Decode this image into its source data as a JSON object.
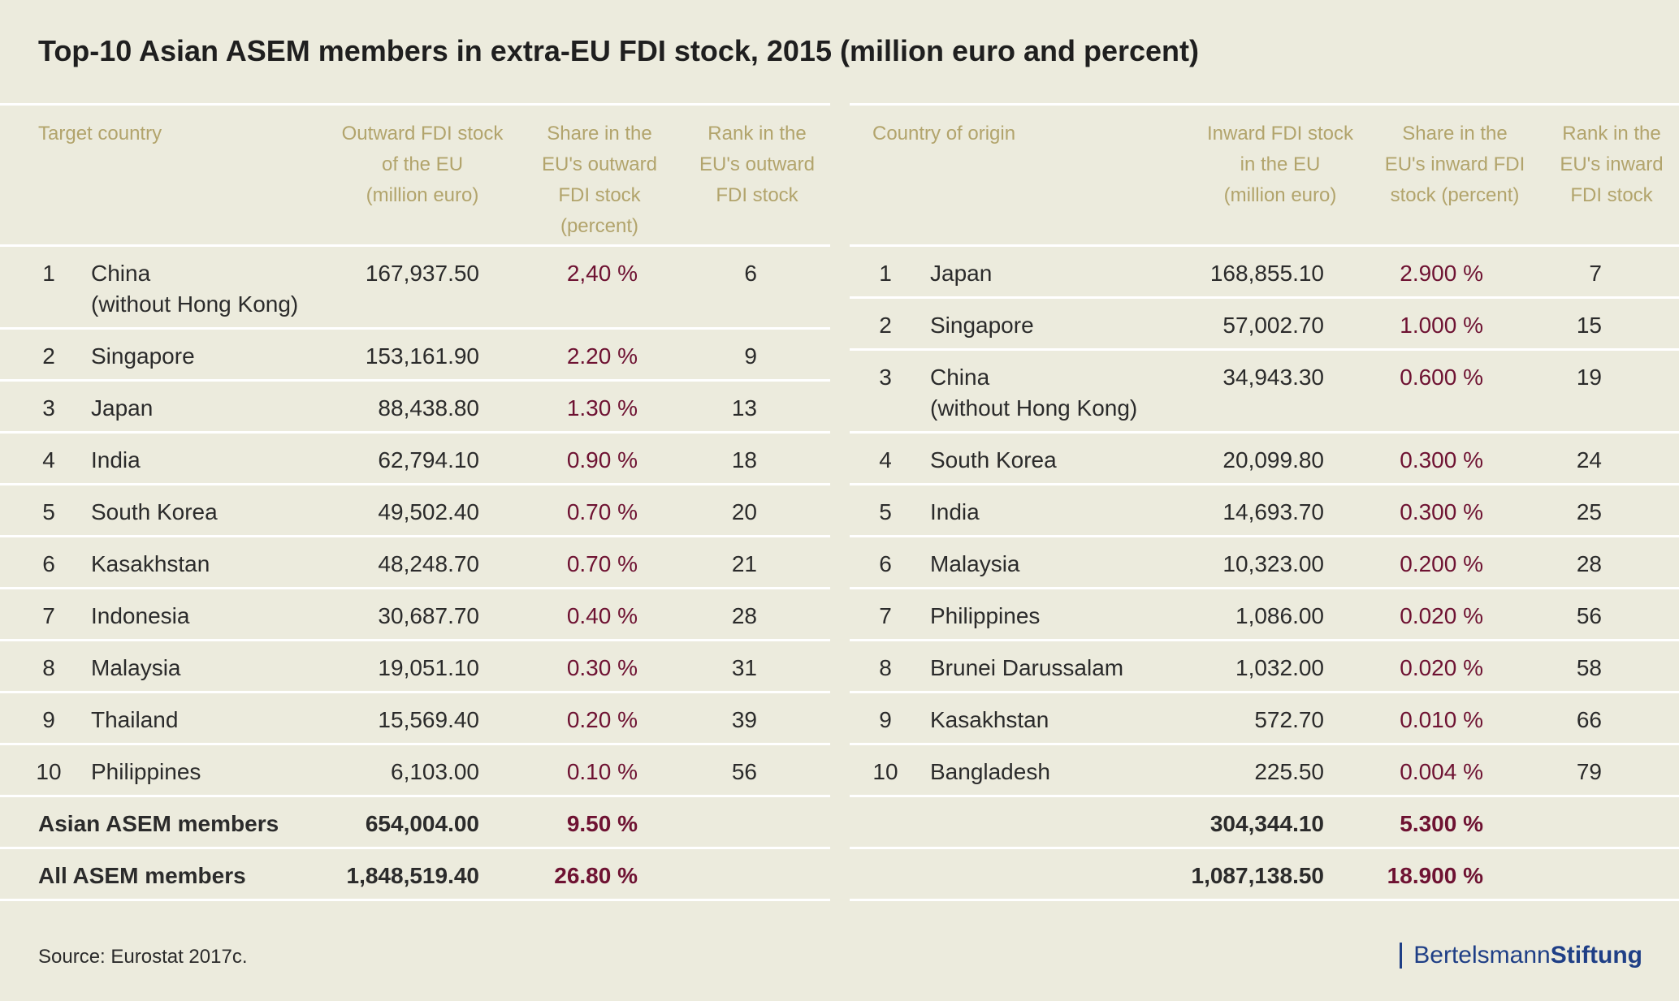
{
  "title": "Top-10 Asian ASEM members in extra-EU FDI stock, 2015 (million euro and percent)",
  "source": "Source: Eurostat 2017c.",
  "brand": {
    "part1": "Bertelsmann",
    "part2": "Stiftung"
  },
  "chart_data": {
    "type": "table",
    "outward": {
      "headers": {
        "country": "Target country",
        "value": "Outward FDI stock\nof the EU\n(million euro)",
        "share": "Share in the\nEU's outward\nFDI stock\n(percent)",
        "rank": "Rank in the\nEU's outward\nFDI stock"
      },
      "rows": [
        {
          "n": "1",
          "country": "China\n(without Hong Kong)",
          "value": "167,937.50",
          "share": "2,40 %",
          "rank": "6"
        },
        {
          "n": "2",
          "country": "Singapore",
          "value": "153,161.90",
          "share": "2.20 %",
          "rank": "9"
        },
        {
          "n": "3",
          "country": "Japan",
          "value": "88,438.80",
          "share": "1.30 %",
          "rank": "13"
        },
        {
          "n": "4",
          "country": "India",
          "value": "62,794.10",
          "share": "0.90 %",
          "rank": "18"
        },
        {
          "n": "5",
          "country": "South Korea",
          "value": "49,502.40",
          "share": "0.70 %",
          "rank": "20"
        },
        {
          "n": "6",
          "country": "Kasakhstan",
          "value": "48,248.70",
          "share": "0.70 %",
          "rank": "21"
        },
        {
          "n": "7",
          "country": "Indonesia",
          "value": "30,687.70",
          "share": "0.40 %",
          "rank": "28"
        },
        {
          "n": "8",
          "country": "Malaysia",
          "value": "19,051.10",
          "share": "0.30 %",
          "rank": "31"
        },
        {
          "n": "9",
          "country": "Thailand",
          "value": "15,569.40",
          "share": "0.20 %",
          "rank": "39"
        },
        {
          "n": "10",
          "country": "Philippines",
          "value": "6,103.00",
          "share": "0.10 %",
          "rank": "56"
        }
      ],
      "totals": [
        {
          "label": "Asian ASEM members",
          "value": "654,004.00",
          "share": "9.50 %"
        },
        {
          "label": "All ASEM members",
          "value": "1,848,519.40",
          "share": "26.80 %"
        }
      ]
    },
    "inward": {
      "headers": {
        "country": "Country of origin",
        "value": "Inward FDI stock\nin the EU\n(million euro)",
        "share": "Share in the\nEU's inward FDI\nstock (percent)",
        "rank": "Rank in the\nEU's inward\nFDI stock"
      },
      "rows": [
        {
          "n": "1",
          "country": "Japan",
          "value": "168,855.10",
          "share": "2.900 %",
          "rank": "7"
        },
        {
          "n": "2",
          "country": "Singapore",
          "value": "57,002.70",
          "share": "1.000 %",
          "rank": "15"
        },
        {
          "n": "3",
          "country": "China\n(without Hong Kong)",
          "value": "34,943.30",
          "share": "0.600 %",
          "rank": "19"
        },
        {
          "n": "4",
          "country": "South Korea",
          "value": "20,099.80",
          "share": "0.300 %",
          "rank": "24"
        },
        {
          "n": "5",
          "country": "India",
          "value": "14,693.70",
          "share": "0.300 %",
          "rank": "25"
        },
        {
          "n": "6",
          "country": "Malaysia",
          "value": "10,323.00",
          "share": "0.200 %",
          "rank": "28"
        },
        {
          "n": "7",
          "country": "Philippines",
          "value": "1,086.00",
          "share": "0.020 %",
          "rank": "56"
        },
        {
          "n": "8",
          "country": "Brunei Darussalam",
          "value": "1,032.00",
          "share": "0.020 %",
          "rank": "58"
        },
        {
          "n": "9",
          "country": "Kasakhstan",
          "value": "572.70",
          "share": "0.010 %",
          "rank": "66"
        },
        {
          "n": "10",
          "country": "Bangladesh",
          "value": "225.50",
          "share": "0.004 %",
          "rank": "79"
        }
      ],
      "totals": [
        {
          "label": "",
          "value": "304,344.10",
          "share": "5.300 %"
        },
        {
          "label": "",
          "value": "1,087,138.50",
          "share": "18.900 %"
        }
      ]
    }
  }
}
